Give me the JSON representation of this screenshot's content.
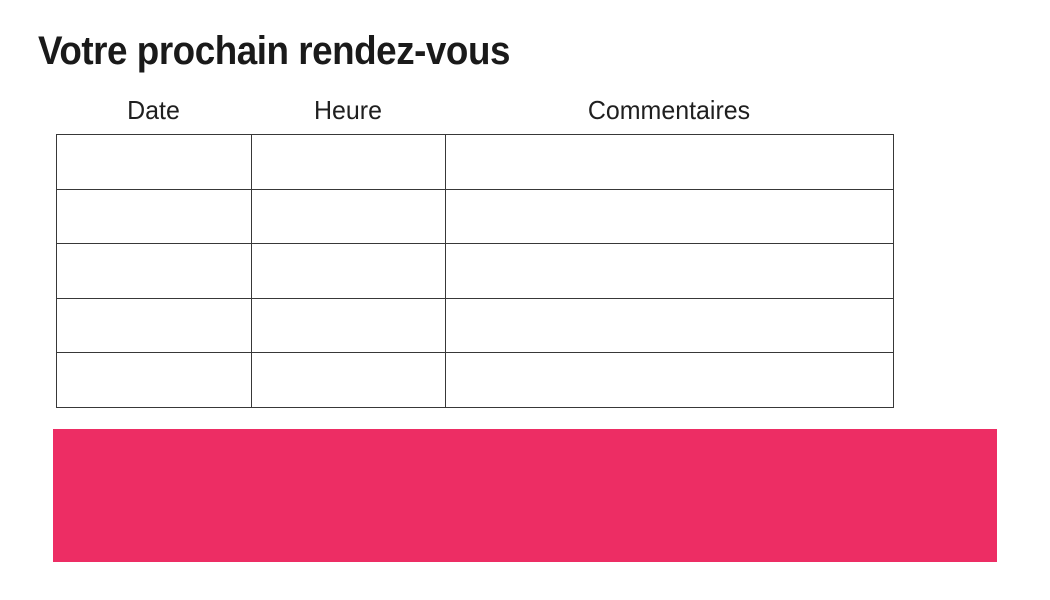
{
  "page": {
    "title": "Votre prochain rendez-vous"
  },
  "table": {
    "headers": [
      "Date",
      "Heure",
      "Commentaires"
    ],
    "rows": [
      [
        "",
        "",
        ""
      ],
      [
        "",
        "",
        ""
      ],
      [
        "",
        "",
        ""
      ],
      [
        "",
        "",
        ""
      ],
      [
        "",
        "",
        ""
      ]
    ]
  },
  "banner": {
    "text": ""
  },
  "colors": {
    "banner_background": "#ED2D64",
    "table_border": "#383838",
    "title_text": "#1a1a1a",
    "header_text": "#1f1f1f",
    "page_background": "#ffffff"
  }
}
